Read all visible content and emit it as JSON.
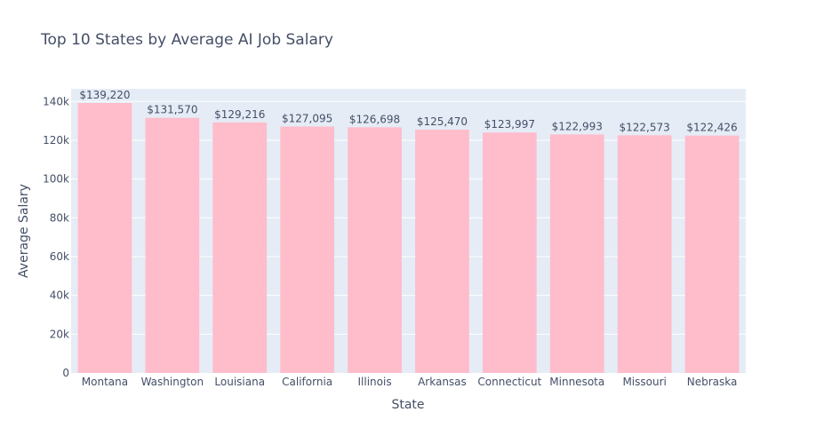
{
  "chart_data": {
    "type": "bar",
    "title": "Top 10 States by Average AI Job Salary",
    "xlabel": "State",
    "ylabel": "Average Salary",
    "categories": [
      "Montana",
      "Washington",
      "Louisiana",
      "California",
      "Illinois",
      "Arkansas",
      "Connecticut",
      "Minnesota",
      "Missouri",
      "Nebraska"
    ],
    "values": [
      139220,
      131570,
      129216,
      127095,
      126698,
      125470,
      123997,
      122993,
      122573,
      122426
    ],
    "data_labels": [
      "$139,220",
      "$131,570",
      "$129,216",
      "$127,095",
      "$126,698",
      "$125,470",
      "$123,997",
      "$122,993",
      "$122,573",
      "$122,426"
    ],
    "yticks": [
      0,
      20000,
      40000,
      60000,
      80000,
      100000,
      120000,
      140000
    ],
    "ytick_labels": [
      "0",
      "20k",
      "40k",
      "60k",
      "80k",
      "100k",
      "120k",
      "140k"
    ],
    "ylim": [
      0,
      146547
    ],
    "grid": true,
    "colors": {
      "bar": "#ffbccb",
      "plot_bg": "#e5ecf6",
      "grid": "#ffffff",
      "text": "#444f66"
    }
  }
}
